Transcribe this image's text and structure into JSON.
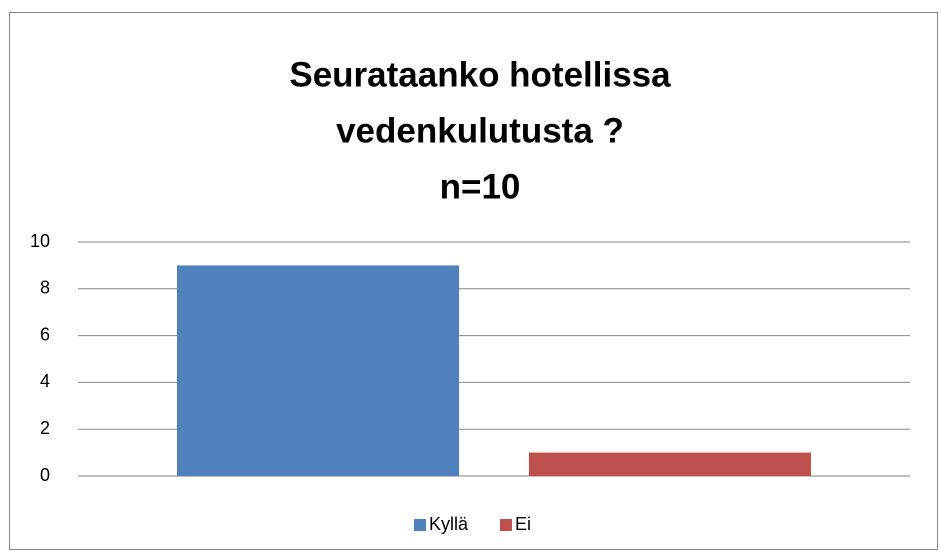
{
  "chart_data": {
    "type": "bar",
    "title": [
      "Seurataanko hotellissa",
      "vedenkulutusta ?",
      "n=10"
    ],
    "categories": [
      null
    ],
    "series": [
      {
        "name": "Kyllä",
        "color": "#4f81bd",
        "values": [
          9
        ]
      },
      {
        "name": "Ei",
        "color": "#c0504d",
        "values": [
          1
        ]
      }
    ],
    "ylim": [
      0,
      10
    ],
    "yticks": [
      0,
      2,
      4,
      6,
      8,
      10
    ],
    "grid": true,
    "legend": "bottom"
  }
}
